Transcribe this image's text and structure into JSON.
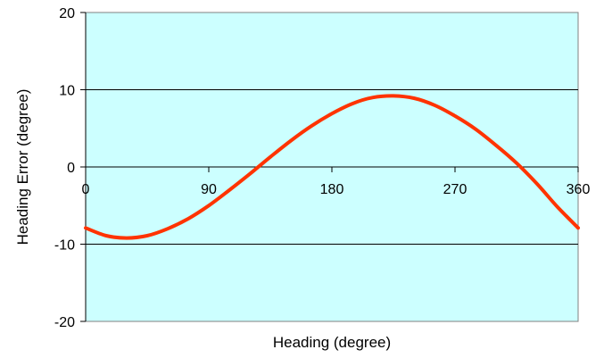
{
  "chart_data": {
    "type": "line",
    "title": "",
    "xlabel": "Heading (degree)",
    "ylabel": "Heading Error (degree)",
    "xlim": [
      0,
      360
    ],
    "ylim": [
      -20,
      20
    ],
    "x_ticks": [
      0,
      90,
      180,
      270,
      360
    ],
    "y_ticks": [
      20,
      10,
      0,
      -10,
      -20
    ],
    "x_tick_labels": [
      "0",
      "90",
      "180",
      "270",
      "360"
    ],
    "y_tick_labels": [
      "20",
      "10",
      "0",
      "-10",
      "-20"
    ],
    "grid": "horizontal",
    "legend": "none",
    "colors": {
      "plot_background": "#ccffff",
      "series_line": "#ff3300",
      "gridline": "#000000"
    },
    "series": [
      {
        "x": [
          0,
          15,
          30,
          45,
          60,
          75,
          90,
          105,
          120,
          135,
          150,
          165,
          180,
          195,
          210,
          225,
          240,
          255,
          270,
          285,
          300,
          315,
          330,
          345,
          360
        ],
        "y": [
          -7.9,
          -8.9,
          -9.2,
          -8.9,
          -8.0,
          -6.7,
          -5.0,
          -3.0,
          -0.9,
          1.3,
          3.4,
          5.3,
          6.9,
          8.2,
          9.0,
          9.2,
          8.9,
          8.0,
          6.6,
          4.9,
          2.8,
          0.5,
          -2.2,
          -5.2,
          -7.9
        ]
      }
    ]
  }
}
